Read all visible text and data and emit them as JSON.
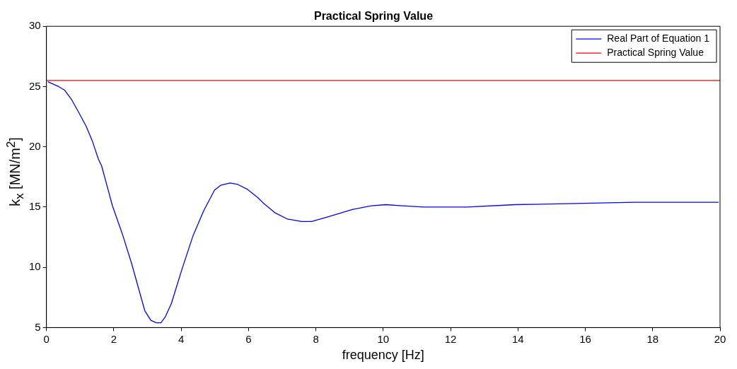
{
  "chart_data": {
    "type": "line",
    "title": "Practical Spring Value",
    "xlabel": "frequency [Hz]",
    "ylabel": "k$_{x}$ [MN/m$^{2}$]",
    "xlim": [
      0,
      20
    ],
    "xticks": [
      0,
      2,
      4,
      6,
      8,
      10,
      12,
      14,
      16,
      18,
      20
    ],
    "ylim": [
      5,
      30
    ],
    "yticks": [
      5,
      10,
      15,
      20,
      25,
      30
    ],
    "grid": false,
    "legend": "top right",
    "marker": "none",
    "line_style": "solid",
    "series": [
      {
        "name": "Real Part of Equation 1",
        "color": "#0000ff",
        "x": [
          0.04,
          0.36,
          0.54,
          0.75,
          0.97,
          1.18,
          1.36,
          1.54,
          1.64,
          1.96,
          2.25,
          2.53,
          2.92,
          3.1,
          3.26,
          3.4,
          3.53,
          3.71,
          4.03,
          4.35,
          4.67,
          4.99,
          5.17,
          5.45,
          5.66,
          5.95,
          6.27,
          6.45,
          6.8,
          7.16,
          7.58,
          7.87,
          8.37,
          9.08,
          9.65,
          10.07,
          10.57,
          11.21,
          12.49,
          13.92,
          15.7,
          17.47,
          19.96
        ],
        "values": [
          25.4,
          25.0,
          24.7,
          23.9,
          22.8,
          21.7,
          20.5,
          19.0,
          18.4,
          15.1,
          12.8,
          10.3,
          6.4,
          5.6,
          5.4,
          5.4,
          5.9,
          7.0,
          9.9,
          12.6,
          14.7,
          16.4,
          16.8,
          17.0,
          16.9,
          16.5,
          15.8,
          15.3,
          14.5,
          14.0,
          13.8,
          13.8,
          14.2,
          14.8,
          15.1,
          15.2,
          15.1,
          15.0,
          15.0,
          15.2,
          15.3,
          15.4,
          15.4
        ]
      },
      {
        "name": "Practical Spring Value",
        "color": "#ff0000",
        "x": [
          0,
          20
        ],
        "values": [
          25.5,
          25.5
        ]
      }
    ]
  }
}
